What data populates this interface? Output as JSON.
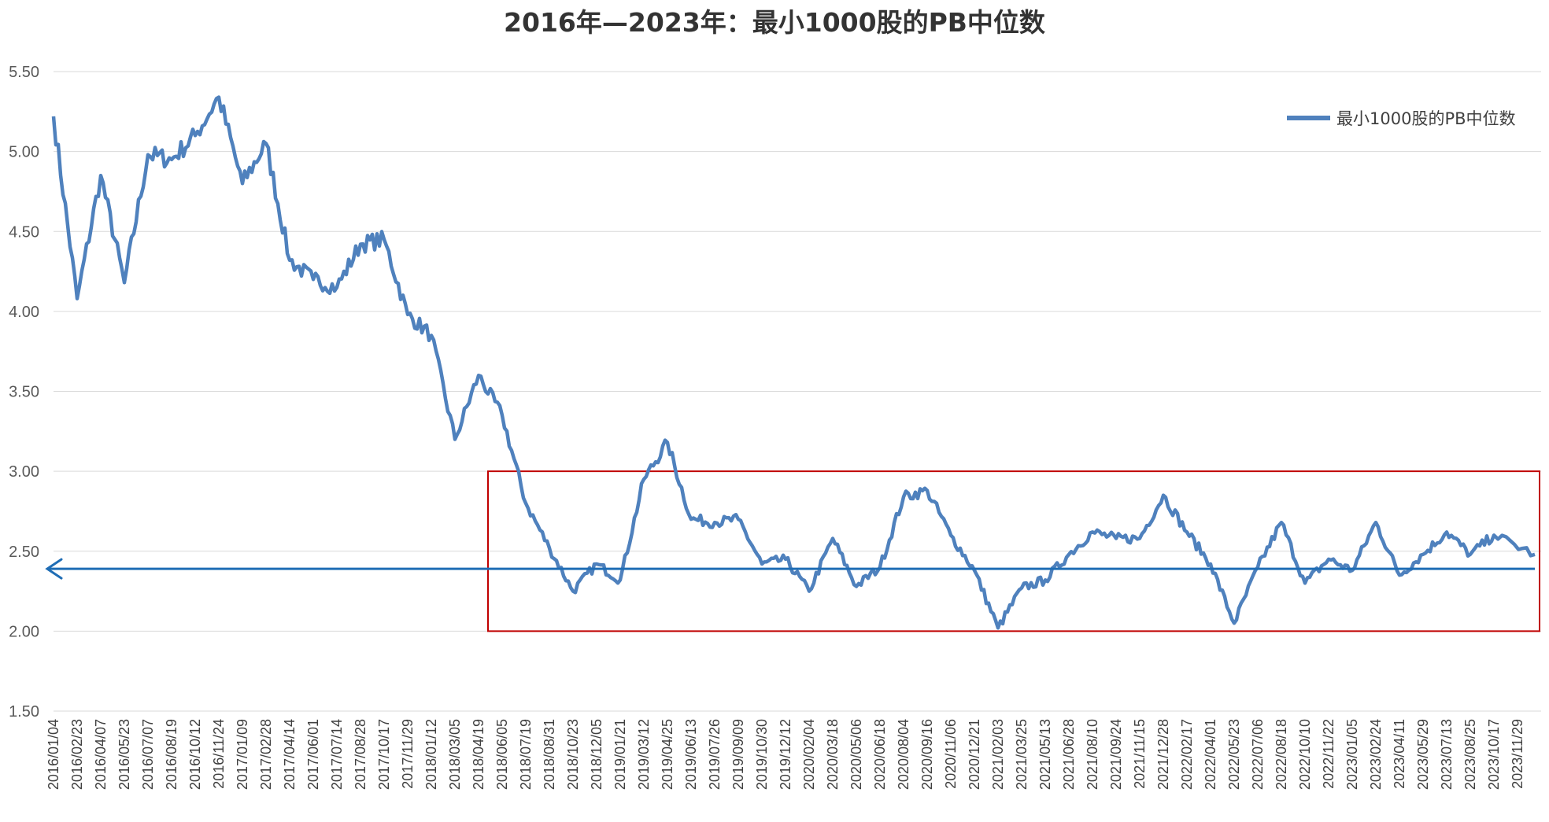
{
  "chart_data": {
    "type": "line",
    "title": "2016年—2023年：最小1000股的PB中位数",
    "xlabel": "",
    "ylabel": "",
    "ylim": [
      1.5,
      5.5
    ],
    "yticks": [
      "1.50",
      "2.00",
      "2.50",
      "3.00",
      "3.50",
      "4.00",
      "4.50",
      "5.00",
      "5.50"
    ],
    "grid": true,
    "legend_position": "top-right",
    "categories": [
      "2016/01/04",
      "2016/02/23",
      "2016/04/07",
      "2016/05/23",
      "2016/07/07",
      "2016/08/19",
      "2016/10/12",
      "2016/11/24",
      "2017/01/09",
      "2017/02/28",
      "2017/04/14",
      "2017/06/01",
      "2017/07/14",
      "2017/08/28",
      "2017/10/17",
      "2017/11/29",
      "2018/01/12",
      "2018/03/05",
      "2018/04/19",
      "2018/06/05",
      "2018/07/19",
      "2018/08/31",
      "2018/10/23",
      "2018/12/05",
      "2019/01/21",
      "2019/03/12",
      "2019/04/25",
      "2019/06/13",
      "2019/07/26",
      "2019/09/09",
      "2019/10/30",
      "2019/12/12",
      "2020/02/04",
      "2020/03/18",
      "2020/05/06",
      "2020/06/18",
      "2020/08/04",
      "2020/09/16",
      "2020/11/06",
      "2020/12/21",
      "2021/02/03",
      "2021/03/25",
      "2021/05/13",
      "2021/06/28",
      "2021/08/10",
      "2021/09/24",
      "2021/11/15",
      "2021/12/28",
      "2022/02/17",
      "2022/04/01",
      "2022/05/23",
      "2022/07/06",
      "2022/08/18",
      "2022/10/10",
      "2022/11/22",
      "2023/01/05",
      "2023/02/24",
      "2023/04/11",
      "2023/05/29",
      "2023/07/13",
      "2023/08/25",
      "2023/10/17",
      "2023/11/29"
    ],
    "series": [
      {
        "name": "最小1000股的PB中位数",
        "color": "#4f81bd",
        "values": [
          5.22,
          4.08,
          4.85,
          4.18,
          4.98,
          4.95,
          5.1,
          5.34,
          4.8,
          5.05,
          4.32,
          4.2,
          4.15,
          4.42,
          4.45,
          3.98,
          3.85,
          3.2,
          3.6,
          3.35,
          2.8,
          2.52,
          2.25,
          2.42,
          2.32,
          2.95,
          3.18,
          2.7,
          2.68,
          2.7,
          2.42,
          2.45,
          2.25,
          2.58,
          2.28,
          2.4,
          2.84,
          2.88,
          2.6,
          2.38,
          2.02,
          2.27,
          2.32,
          2.48,
          2.62,
          2.58,
          2.58,
          2.85,
          2.62,
          2.42,
          2.05,
          2.4,
          2.68,
          2.3,
          2.45,
          2.38,
          2.68,
          2.35,
          2.48,
          2.62,
          2.48,
          2.6,
          2.48
        ]
      }
    ],
    "annotations": {
      "highlight_box": {
        "y_range": [
          2.0,
          3.0
        ],
        "x_from": "2018/04/19",
        "color": "#c00000"
      },
      "reference_line": {
        "value": 2.39,
        "color": "#1f6db5",
        "arrow": "left"
      }
    }
  }
}
